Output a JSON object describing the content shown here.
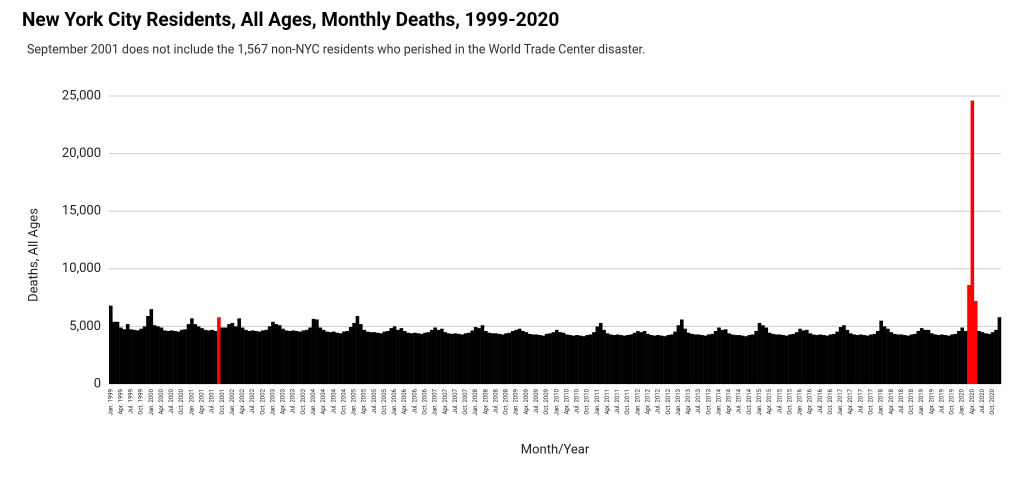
{
  "chart_data": {
    "type": "bar",
    "title": "New York City Residents, All Ages, Monthly Deaths, 1999-2020",
    "subtitle": "September 2001 does not include the 1,567 non-NYC residents who perished in the World Trade Center disaster.",
    "x_label": "Month/Year",
    "y_label": "Deaths, All Ages",
    "categories": [
      "Jan. 1999",
      null,
      null,
      "Apr. 1999",
      null,
      null,
      "Jul. 1999",
      null,
      null,
      "Oct. 1999",
      null,
      null,
      "Jan. 2000",
      null,
      null,
      "Apr. 2000",
      null,
      null,
      "Jul. 2000",
      null,
      null,
      "Oct. 2000",
      null,
      null,
      "Jan. 2001",
      null,
      null,
      "Apr. 2001",
      null,
      null,
      "Jul. 2001",
      null,
      null,
      "Oct. 2001",
      null,
      null,
      "Jan. 2002",
      null,
      null,
      "Apr. 2002",
      null,
      null,
      "Jul. 2002",
      null,
      null,
      "Oct. 2002",
      null,
      null,
      "Jan. 2003",
      null,
      null,
      "Apr. 2003",
      null,
      null,
      "Jul. 2003",
      null,
      null,
      "Oct. 2003",
      null,
      null,
      "Jan. 2004",
      null,
      null,
      "Apr. 2004",
      null,
      null,
      "Jul. 2004",
      null,
      null,
      "Oct. 2004",
      null,
      null,
      "Jan. 2005",
      null,
      null,
      "Apr. 2005",
      null,
      null,
      "Jul. 2005",
      null,
      null,
      "Oct. 2005",
      null,
      null,
      "Jan. 2006",
      null,
      null,
      "Apr. 2006",
      null,
      null,
      "Jul. 2006",
      null,
      null,
      "Oct. 2006",
      null,
      null,
      "Jan. 2007",
      null,
      null,
      "Apr. 2007",
      null,
      null,
      "Jul. 2007",
      null,
      null,
      "Oct. 2007",
      null,
      null,
      "Jan. 2008",
      null,
      null,
      "Apr. 2008",
      null,
      null,
      "Jul. 2008",
      null,
      null,
      "Oct. 2008",
      null,
      null,
      "Jan. 2009",
      null,
      null,
      "Apr. 2009",
      null,
      null,
      "Jul. 2009",
      null,
      null,
      "Oct. 2009",
      null,
      null,
      "Jan. 2010",
      null,
      null,
      "Apr. 2010",
      null,
      null,
      "Jul. 2010",
      null,
      null,
      "Oct. 2010",
      null,
      null,
      "Jan. 2011",
      null,
      null,
      "Apr. 2011",
      null,
      null,
      "Jul. 2011",
      null,
      null,
      "Oct. 2011",
      null,
      null,
      "Jan. 2012",
      null,
      null,
      "Apr. 2012",
      null,
      null,
      "Jul. 2012",
      null,
      null,
      "Oct. 2012",
      null,
      null,
      "Jan. 2013",
      null,
      null,
      "Apr. 2013",
      null,
      null,
      "Jul. 2013",
      null,
      null,
      "Oct. 2013",
      null,
      null,
      "Jan. 2014",
      null,
      null,
      "Apr. 2014",
      null,
      null,
      "Jul. 2014",
      null,
      null,
      "Oct. 2014",
      null,
      null,
      "Jan. 2015",
      null,
      null,
      "Apr. 2015",
      null,
      null,
      "Jul. 2015",
      null,
      null,
      "Oct. 2015",
      null,
      null,
      "Jan. 2016",
      null,
      null,
      "Apr. 2016",
      null,
      null,
      "Jul. 2016",
      null,
      null,
      "Oct. 2016",
      null,
      null,
      "Jan. 2017",
      null,
      null,
      "Apr. 2017",
      null,
      null,
      "Jul. 2017",
      null,
      null,
      "Oct. 2017",
      null,
      null,
      "Jan. 2018",
      null,
      null,
      "Apr. 2018",
      null,
      null,
      "Jul. 2018",
      null,
      null,
      "Oct. 2018",
      null,
      null,
      "Jan. 2019",
      null,
      null,
      "Apr. 2019",
      null,
      null,
      "Jul. 2019",
      null,
      null,
      "Oct. 2019",
      null,
      null,
      "Jan. 2020",
      null,
      null,
      "Apr. 2020",
      null,
      null,
      "Jul. 2020",
      null,
      null,
      "Oct. 2020",
      null,
      null
    ],
    "values": [
      6800,
      5400,
      5400,
      4900,
      4750,
      5200,
      4750,
      4700,
      4650,
      4800,
      5000,
      5900,
      6500,
      5100,
      5000,
      4900,
      4650,
      4600,
      4650,
      4600,
      4550,
      4700,
      4750,
      5200,
      5700,
      5200,
      5000,
      4850,
      4700,
      4650,
      4700,
      4600,
      5800,
      4900,
      4900,
      5200,
      5300,
      5000,
      5700,
      4900,
      4700,
      4600,
      4650,
      4600,
      4550,
      4650,
      4700,
      5000,
      5400,
      5200,
      5100,
      4800,
      4650,
      4600,
      4650,
      4600,
      4550,
      4650,
      4700,
      4900,
      5650,
      5600,
      4900,
      4700,
      4550,
      4500,
      4550,
      4450,
      4400,
      4550,
      4600,
      4950,
      5300,
      5900,
      5200,
      4700,
      4550,
      4500,
      4500,
      4450,
      4400,
      4550,
      4600,
      4850,
      5000,
      4700,
      4850,
      4600,
      4450,
      4400,
      4450,
      4400,
      4350,
      4450,
      4500,
      4700,
      4900,
      4700,
      4800,
      4500,
      4400,
      4350,
      4400,
      4350,
      4300,
      4400,
      4450,
      4650,
      4950,
      4850,
      5100,
      4600,
      4450,
      4400,
      4400,
      4350,
      4300,
      4400,
      4450,
      4600,
      4700,
      4800,
      4600,
      4500,
      4350,
      4300,
      4300,
      4250,
      4200,
      4350,
      4400,
      4500,
      4700,
      4500,
      4450,
      4300,
      4250,
      4200,
      4250,
      4200,
      4150,
      4250,
      4300,
      4500,
      5000,
      5300,
      4700,
      4400,
      4300,
      4250,
      4300,
      4250,
      4200,
      4250,
      4300,
      4450,
      4600,
      4500,
      4600,
      4350,
      4250,
      4200,
      4250,
      4200,
      4150,
      4250,
      4300,
      4550,
      5100,
      5600,
      4800,
      4450,
      4350,
      4300,
      4300,
      4250,
      4200,
      4300,
      4350,
      4600,
      4900,
      4700,
      4750,
      4400,
      4300,
      4250,
      4250,
      4200,
      4150,
      4250,
      4300,
      4600,
      5300,
      5100,
      4900,
      4450,
      4350,
      4300,
      4300,
      4250,
      4200,
      4300,
      4350,
      4500,
      4800,
      4650,
      4700,
      4400,
      4300,
      4250,
      4300,
      4250,
      4200,
      4300,
      4350,
      4550,
      4950,
      5100,
      4700,
      4400,
      4300,
      4250,
      4300,
      4250,
      4200,
      4300,
      4350,
      4600,
      5500,
      5000,
      4800,
      4500,
      4350,
      4300,
      4300,
      4250,
      4200,
      4300,
      4350,
      4600,
      4850,
      4700,
      4700,
      4400,
      4300,
      4250,
      4300,
      4250,
      4200,
      4300,
      4350,
      4600,
      4900,
      4600,
      8600,
      24600,
      7200,
      4600,
      4500,
      4400,
      4350,
      4500,
      4700,
      5800
    ],
    "colors": [
      "#000000",
      "#000000",
      "#000000",
      "#000000",
      "#000000",
      "#000000",
      "#000000",
      "#000000",
      "#000000",
      "#000000",
      "#000000",
      "#000000",
      "#000000",
      "#000000",
      "#000000",
      "#000000",
      "#000000",
      "#000000",
      "#000000",
      "#000000",
      "#000000",
      "#000000",
      "#000000",
      "#000000",
      "#000000",
      "#000000",
      "#000000",
      "#000000",
      "#000000",
      "#000000",
      "#000000",
      "#000000",
      "#ff0000",
      "#000000",
      "#000000",
      "#000000",
      "#000000",
      "#000000",
      "#000000",
      "#000000",
      "#000000",
      "#000000",
      "#000000",
      "#000000",
      "#000000",
      "#000000",
      "#000000",
      "#000000",
      "#000000",
      "#000000",
      "#000000",
      "#000000",
      "#000000",
      "#000000",
      "#000000",
      "#000000",
      "#000000",
      "#000000",
      "#000000",
      "#000000",
      "#000000",
      "#000000",
      "#000000",
      "#000000",
      "#000000",
      "#000000",
      "#000000",
      "#000000",
      "#000000",
      "#000000",
      "#000000",
      "#000000",
      "#000000",
      "#000000",
      "#000000",
      "#000000",
      "#000000",
      "#000000",
      "#000000",
      "#000000",
      "#000000",
      "#000000",
      "#000000",
      "#000000",
      "#000000",
      "#000000",
      "#000000",
      "#000000",
      "#000000",
      "#000000",
      "#000000",
      "#000000",
      "#000000",
      "#000000",
      "#000000",
      "#000000",
      "#000000",
      "#000000",
      "#000000",
      "#000000",
      "#000000",
      "#000000",
      "#000000",
      "#000000",
      "#000000",
      "#000000",
      "#000000",
      "#000000",
      "#000000",
      "#000000",
      "#000000",
      "#000000",
      "#000000",
      "#000000",
      "#000000",
      "#000000",
      "#000000",
      "#000000",
      "#000000",
      "#000000",
      "#000000",
      "#000000",
      "#000000",
      "#000000",
      "#000000",
      "#000000",
      "#000000",
      "#000000",
      "#000000",
      "#000000",
      "#000000",
      "#000000",
      "#000000",
      "#000000",
      "#000000",
      "#000000",
      "#000000",
      "#000000",
      "#000000",
      "#000000",
      "#000000",
      "#000000",
      "#000000",
      "#000000",
      "#000000",
      "#000000",
      "#000000",
      "#000000",
      "#000000",
      "#000000",
      "#000000",
      "#000000",
      "#000000",
      "#000000",
      "#000000",
      "#000000",
      "#000000",
      "#000000",
      "#000000",
      "#000000",
      "#000000",
      "#000000",
      "#000000",
      "#000000",
      "#000000",
      "#000000",
      "#000000",
      "#000000",
      "#000000",
      "#000000",
      "#000000",
      "#000000",
      "#000000",
      "#000000",
      "#000000",
      "#000000",
      "#000000",
      "#000000",
      "#000000",
      "#000000",
      "#000000",
      "#000000",
      "#000000",
      "#000000",
      "#000000",
      "#000000",
      "#000000",
      "#000000",
      "#000000",
      "#000000",
      "#000000",
      "#000000",
      "#000000",
      "#000000",
      "#000000",
      "#000000",
      "#000000",
      "#000000",
      "#000000",
      "#000000",
      "#000000",
      "#000000",
      "#000000",
      "#000000",
      "#000000",
      "#000000",
      "#000000",
      "#000000",
      "#000000",
      "#000000",
      "#000000",
      "#000000",
      "#000000",
      "#000000",
      "#000000",
      "#000000",
      "#000000",
      "#000000",
      "#000000",
      "#000000",
      "#000000",
      "#000000",
      "#000000",
      "#000000",
      "#000000",
      "#000000",
      "#000000",
      "#000000",
      "#000000",
      "#000000",
      "#000000",
      "#000000",
      "#000000",
      "#000000",
      "#000000",
      "#000000",
      "#000000",
      "#000000",
      "#000000",
      "#000000",
      "#000000",
      "#000000",
      "#000000",
      "#000000",
      "#000000",
      "#000000",
      "#000000",
      "#000000",
      "#000000",
      "#000000",
      "#000000",
      "#000000",
      "#000000",
      "#000000",
      "#ff0000",
      "#ff0000",
      "#ff0000",
      "#000000",
      "#000000",
      "#000000",
      "#000000",
      "#000000",
      "#000000",
      "#000000"
    ],
    "ylim": [
      0,
      25000
    ],
    "yticks": [
      0,
      {
        "value": 5000,
        "label": "5,000"
      },
      {
        "value": 10000,
        "label": "10,000"
      },
      {
        "value": 15000,
        "label": "15,000"
      },
      {
        "value": 20000,
        "label": "20,000"
      },
      {
        "value": 25000,
        "label": "25,000"
      }
    ],
    "grid": true
  }
}
